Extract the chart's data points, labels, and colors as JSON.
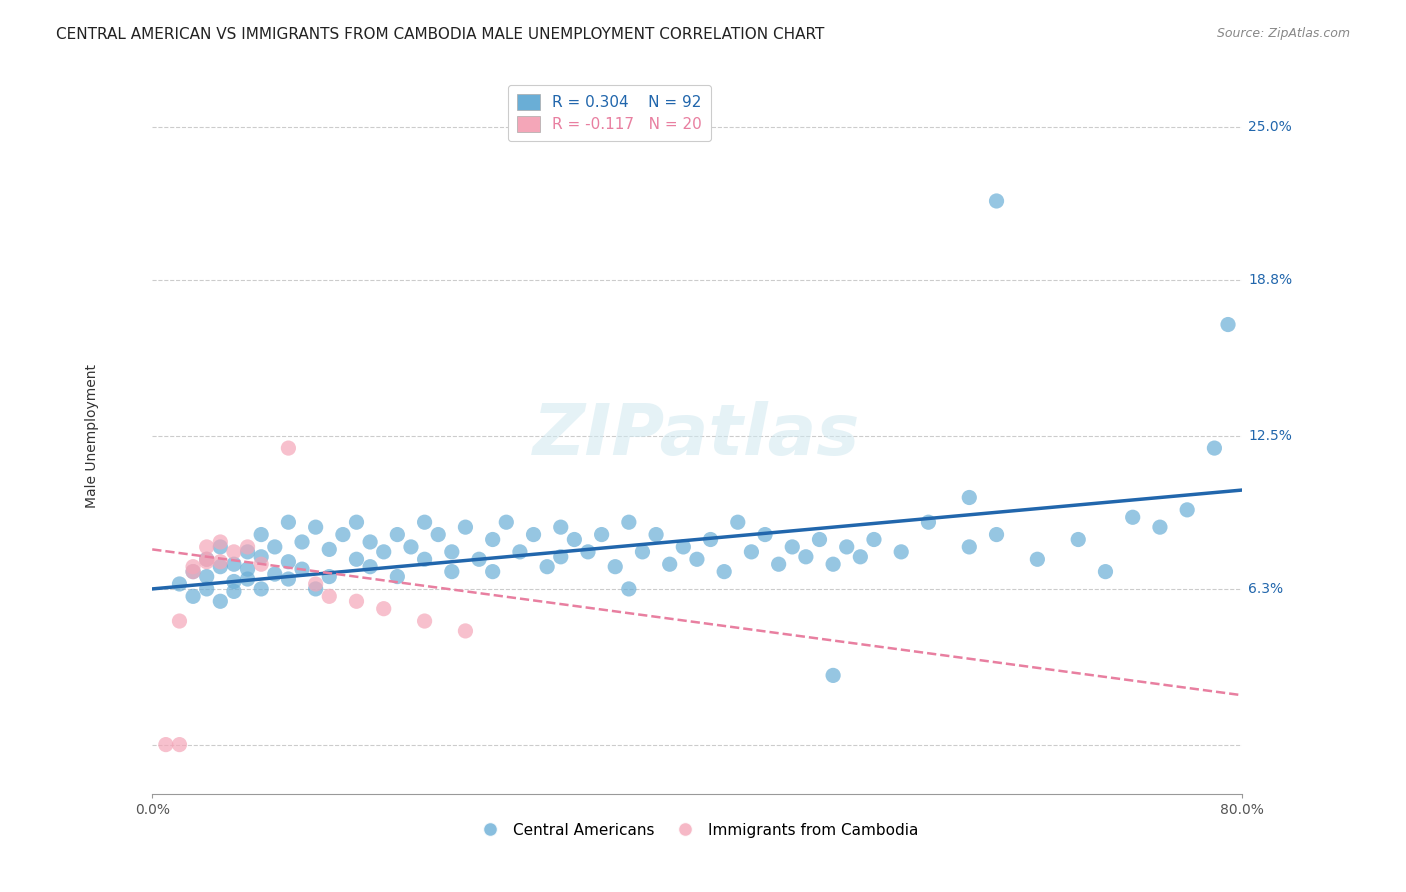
{
  "title": "CENTRAL AMERICAN VS IMMIGRANTS FROM CAMBODIA MALE UNEMPLOYMENT CORRELATION CHART",
  "source": "Source: ZipAtlas.com",
  "xlabel_ticks": [
    "0.0%",
    "80.0%"
  ],
  "ylabel_ticks": [
    0.0,
    0.063,
    0.125,
    0.188,
    0.25
  ],
  "ylabel_labels": [
    "",
    "6.3%",
    "12.5%",
    "18.8%",
    "25.0%"
  ],
  "ylabel": "Male Unemployment",
  "xmin": 0.0,
  "xmax": 0.8,
  "ymin": -0.02,
  "ymax": 0.27,
  "blue_color": "#6aaed6",
  "pink_color": "#f4a6b8",
  "blue_line_color": "#2166ac",
  "pink_line_color": "#e87fa0",
  "legend_R1": "0.304",
  "legend_N1": "92",
  "legend_R2": "-0.117",
  "legend_N2": "20",
  "watermark": "ZIPatlas",
  "blue_scatter_x": [
    0.02,
    0.03,
    0.03,
    0.04,
    0.04,
    0.04,
    0.05,
    0.05,
    0.05,
    0.06,
    0.06,
    0.06,
    0.07,
    0.07,
    0.07,
    0.08,
    0.08,
    0.08,
    0.09,
    0.09,
    0.1,
    0.1,
    0.1,
    0.11,
    0.11,
    0.12,
    0.12,
    0.13,
    0.13,
    0.14,
    0.15,
    0.15,
    0.16,
    0.16,
    0.17,
    0.18,
    0.18,
    0.19,
    0.2,
    0.2,
    0.21,
    0.22,
    0.22,
    0.23,
    0.24,
    0.25,
    0.25,
    0.26,
    0.27,
    0.28,
    0.29,
    0.3,
    0.3,
    0.31,
    0.32,
    0.33,
    0.34,
    0.35,
    0.36,
    0.37,
    0.38,
    0.39,
    0.4,
    0.41,
    0.42,
    0.43,
    0.44,
    0.45,
    0.46,
    0.47,
    0.48,
    0.49,
    0.5,
    0.51,
    0.52,
    0.53,
    0.55,
    0.57,
    0.6,
    0.62,
    0.65,
    0.68,
    0.7,
    0.72,
    0.74,
    0.76,
    0.78,
    0.79,
    0.62,
    0.6,
    0.35,
    0.5
  ],
  "blue_scatter_y": [
    0.065,
    0.07,
    0.06,
    0.075,
    0.063,
    0.068,
    0.072,
    0.058,
    0.08,
    0.066,
    0.073,
    0.062,
    0.078,
    0.067,
    0.071,
    0.085,
    0.063,
    0.076,
    0.069,
    0.08,
    0.074,
    0.067,
    0.09,
    0.082,
    0.071,
    0.088,
    0.063,
    0.079,
    0.068,
    0.085,
    0.075,
    0.09,
    0.072,
    0.082,
    0.078,
    0.085,
    0.068,
    0.08,
    0.075,
    0.09,
    0.085,
    0.078,
    0.07,
    0.088,
    0.075,
    0.083,
    0.07,
    0.09,
    0.078,
    0.085,
    0.072,
    0.088,
    0.076,
    0.083,
    0.078,
    0.085,
    0.072,
    0.09,
    0.078,
    0.085,
    0.073,
    0.08,
    0.075,
    0.083,
    0.07,
    0.09,
    0.078,
    0.085,
    0.073,
    0.08,
    0.076,
    0.083,
    0.073,
    0.08,
    0.076,
    0.083,
    0.078,
    0.09,
    0.08,
    0.085,
    0.075,
    0.083,
    0.07,
    0.092,
    0.088,
    0.095,
    0.12,
    0.17,
    0.22,
    0.1,
    0.063,
    0.028
  ],
  "pink_scatter_x": [
    0.01,
    0.02,
    0.02,
    0.03,
    0.03,
    0.04,
    0.04,
    0.04,
    0.05,
    0.05,
    0.06,
    0.07,
    0.08,
    0.1,
    0.12,
    0.13,
    0.15,
    0.17,
    0.2,
    0.23
  ],
  "pink_scatter_y": [
    0.0,
    0.0,
    0.05,
    0.07,
    0.072,
    0.075,
    0.074,
    0.08,
    0.082,
    0.074,
    0.078,
    0.08,
    0.073,
    0.12,
    0.065,
    0.06,
    0.058,
    0.055,
    0.05,
    0.046
  ],
  "blue_line_x0": 0.0,
  "blue_line_y0": 0.063,
  "blue_line_x1": 0.8,
  "blue_line_y1": 0.103,
  "pink_line_x0": 0.0,
  "pink_line_y0": 0.079,
  "pink_line_x1": 0.8,
  "pink_line_y1": 0.02,
  "title_fontsize": 11,
  "axis_label_fontsize": 10,
  "tick_fontsize": 10,
  "legend_fontsize": 11
}
